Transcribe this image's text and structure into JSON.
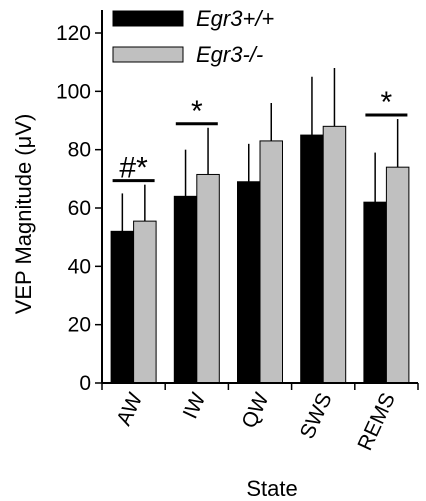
{
  "chart_data": {
    "type": "bar",
    "categories": [
      "AW",
      "IW",
      "QW",
      "SWS",
      "REMS"
    ],
    "series": [
      {
        "name": "Egr3+/+",
        "values": [
          52,
          64,
          69,
          85,
          62
        ],
        "error": [
          13,
          16,
          13,
          20,
          17
        ],
        "color": "#000000"
      },
      {
        "name": "Egr3-/-",
        "values": [
          55.5,
          71.5,
          83,
          88,
          74
        ],
        "error": [
          12.5,
          16,
          13,
          20,
          16.5
        ],
        "color": "#c0c0c0"
      }
    ],
    "xlabel": "State",
    "ylabel": "VEP Magnitude (μV)",
    "ylim": [
      0,
      120
    ],
    "yticks": [
      0,
      20,
      40,
      60,
      80,
      100,
      120
    ],
    "grid": false,
    "legend_position": "top-left",
    "annotations": [
      {
        "category": "AW",
        "text": "#*"
      },
      {
        "category": "IW",
        "text": "*"
      },
      {
        "category": "REMS",
        "text": "*"
      }
    ]
  }
}
